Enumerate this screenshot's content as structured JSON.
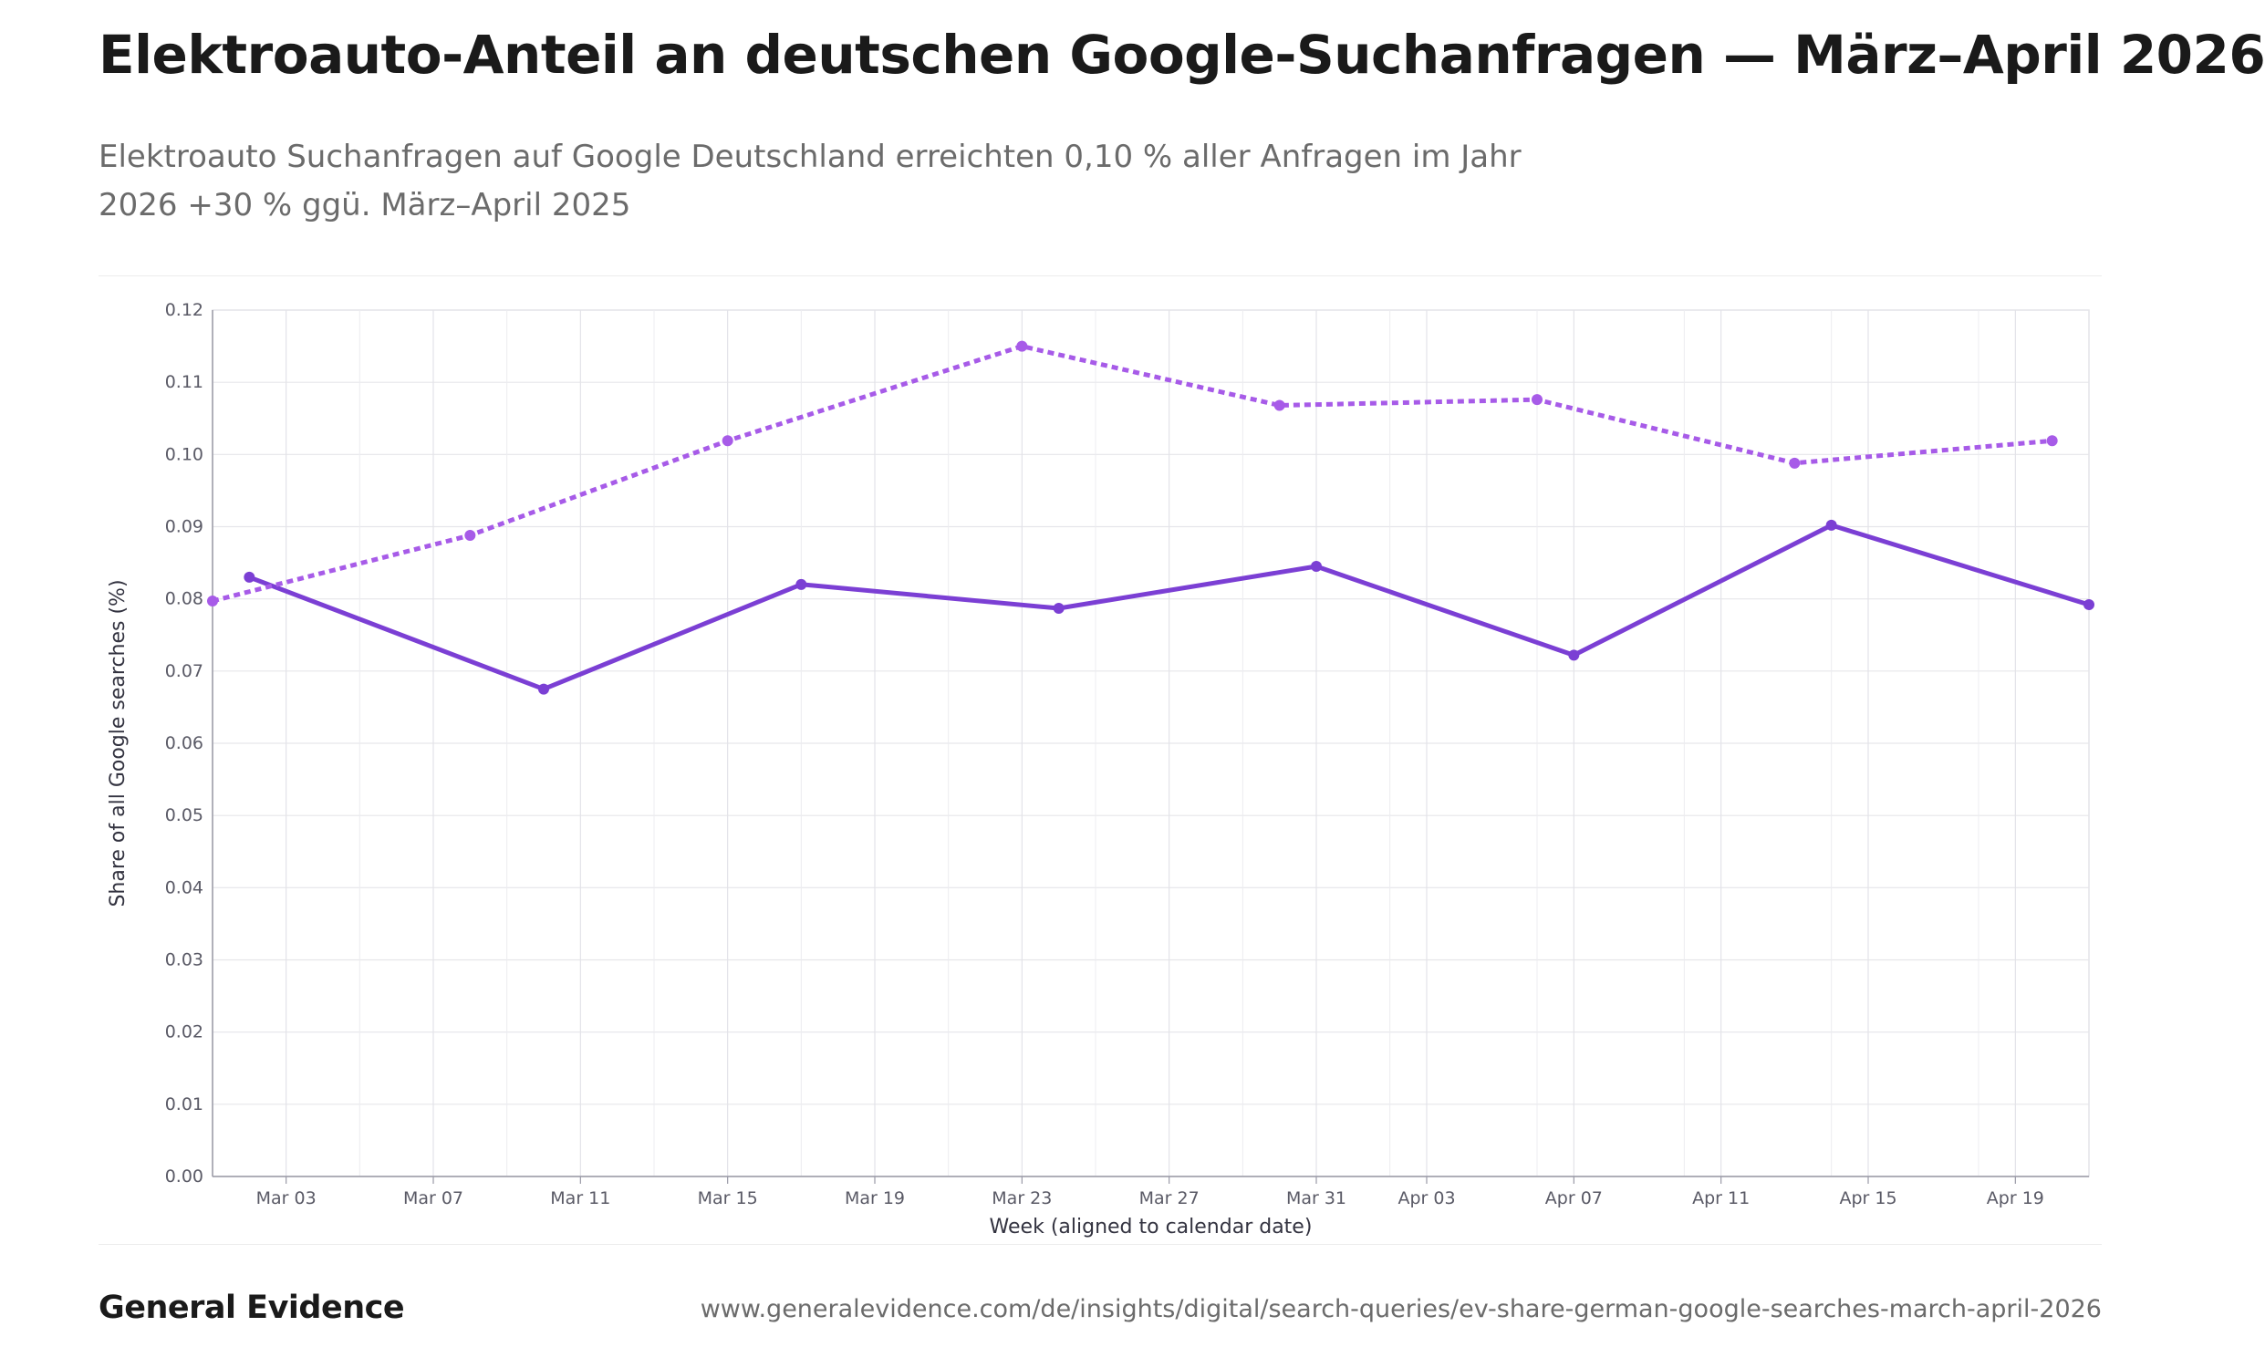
{
  "title": "Elektroauto-Anteil an deutschen Google-Suchanfragen — März–April 2026",
  "subtitle": "Elektroauto Suchanfragen auf Google Deutschland erreichten 0,10 % aller Anfragen im Jahr 2026 +30 % ggü. März–April 2025",
  "footer": {
    "brand": "General Evidence",
    "url": "www.generalevidence.com/de/insights/digital/search-queries/ev-share-german-google-searches-march-april-2026"
  },
  "chart_data": {
    "type": "line",
    "xlabel": "Week (aligned to calendar date)",
    "ylabel": "Share of all Google searches (%)",
    "ylim": [
      0,
      0.12
    ],
    "yticks": [
      "0.00",
      "0.01",
      "0.02",
      "0.03",
      "0.04",
      "0.05",
      "0.06",
      "0.07",
      "0.08",
      "0.09",
      "0.10",
      "0.11",
      "0.12"
    ],
    "xlim": [
      "2026-03-01",
      "2026-04-21"
    ],
    "xticks": [
      {
        "date": "2026-03-03",
        "label": "Mar 03"
      },
      {
        "date": "2026-03-07",
        "label": "Mar 07"
      },
      {
        "date": "2026-03-11",
        "label": "Mar 11"
      },
      {
        "date": "2026-03-15",
        "label": "Mar 15"
      },
      {
        "date": "2026-03-19",
        "label": "Mar 19"
      },
      {
        "date": "2026-03-23",
        "label": "Mar 23"
      },
      {
        "date": "2026-03-27",
        "label": "Mar 27"
      },
      {
        "date": "2026-03-31",
        "label": "Mar 31"
      },
      {
        "date": "2026-04-03",
        "label": "Apr 03"
      },
      {
        "date": "2026-04-07",
        "label": "Apr 07"
      },
      {
        "date": "2026-04-11",
        "label": "Apr 11"
      },
      {
        "date": "2026-04-15",
        "label": "Apr 15"
      },
      {
        "date": "2026-04-19",
        "label": "Apr 19"
      }
    ],
    "grid": true,
    "series": [
      {
        "style": "solid",
        "color": "#7b3fd4",
        "points": [
          {
            "x": "2026-03-02",
            "y": 0.083
          },
          {
            "x": "2026-03-10",
            "y": 0.0675
          },
          {
            "x": "2026-03-17",
            "y": 0.082
          },
          {
            "x": "2026-03-24",
            "y": 0.0787
          },
          {
            "x": "2026-03-31",
            "y": 0.0845
          },
          {
            "x": "2026-04-07",
            "y": 0.0722
          },
          {
            "x": "2026-04-14",
            "y": 0.0902
          },
          {
            "x": "2026-04-21",
            "y": 0.0792
          }
        ]
      },
      {
        "style": "dotted",
        "color": "#a75be8",
        "points": [
          {
            "x": "2026-03-01",
            "y": 0.0797
          },
          {
            "x": "2026-03-08",
            "y": 0.0888
          },
          {
            "x": "2026-03-15",
            "y": 0.1019
          },
          {
            "x": "2026-03-23",
            "y": 0.115
          },
          {
            "x": "2026-03-30",
            "y": 0.1068
          },
          {
            "x": "2026-04-06",
            "y": 0.1076
          },
          {
            "x": "2026-04-13",
            "y": 0.0988
          },
          {
            "x": "2026-04-20",
            "y": 0.1019
          }
        ]
      }
    ]
  }
}
